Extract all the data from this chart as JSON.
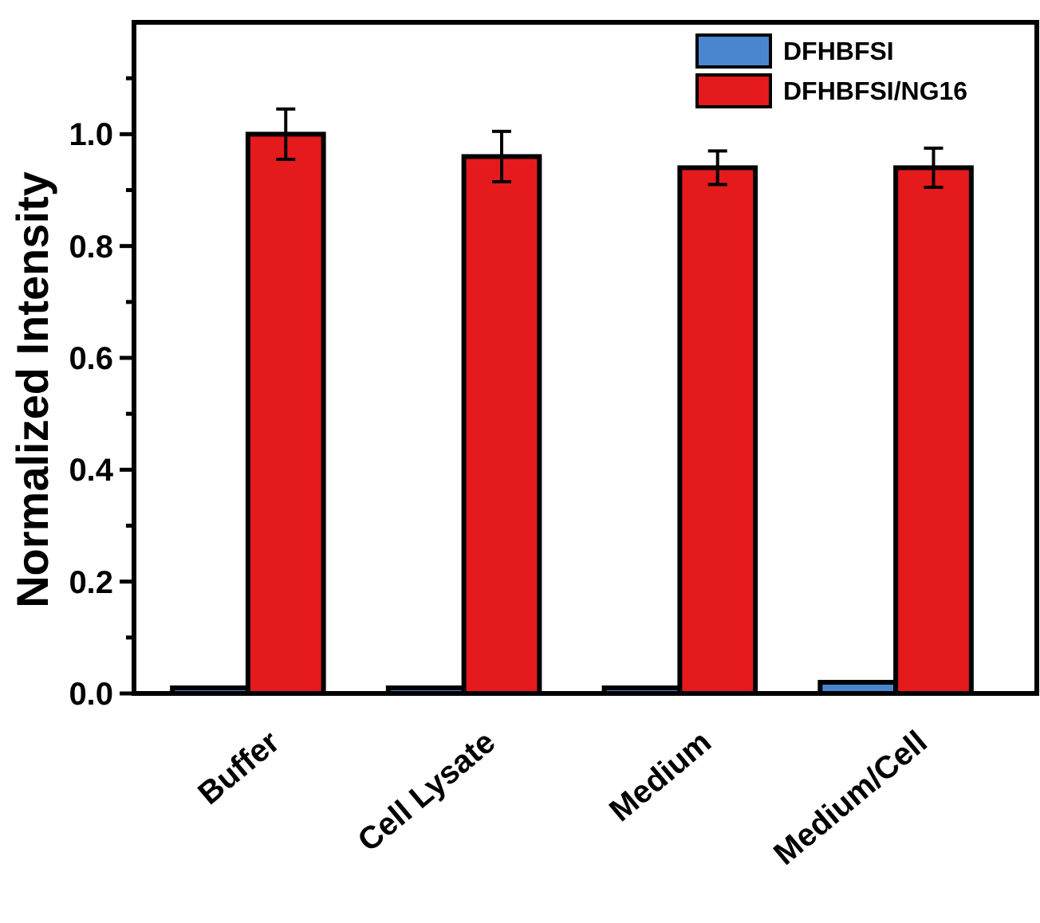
{
  "chart_data": {
    "type": "bar",
    "ylabel": "Normalized Intensity",
    "categories": [
      "Buffer",
      "Cell Lysate",
      "Medium",
      "Medium/Cell"
    ],
    "series": [
      {
        "name": "DFHBFSI",
        "color": "#4a86d0",
        "values": [
          0.01,
          0.01,
          0.01,
          0.02
        ]
      },
      {
        "name": "DFHBFSI/NG16",
        "color": "#e41a1c",
        "values": [
          1.0,
          0.96,
          0.94,
          0.94
        ],
        "errors": [
          0.045,
          0.045,
          0.03,
          0.035
        ]
      }
    ],
    "ylim": [
      0,
      1.2
    ],
    "yticks": [
      {
        "value": 0,
        "label": "0.0"
      },
      {
        "value": 0.1,
        "label": null
      },
      {
        "value": 0.2,
        "label": "0.2"
      },
      {
        "value": 0.3,
        "label": null
      },
      0.4,
      {
        "value": 0.5,
        "label": null
      },
      0.6,
      {
        "value": 0.7,
        "label": null
      },
      0.8,
      {
        "value": 0.9,
        "label": null
      },
      {
        "value": 1.0,
        "label": "1.0"
      },
      {
        "value": 1.1,
        "label": null
      }
    ],
    "legend": "top right",
    "grid": false
  }
}
